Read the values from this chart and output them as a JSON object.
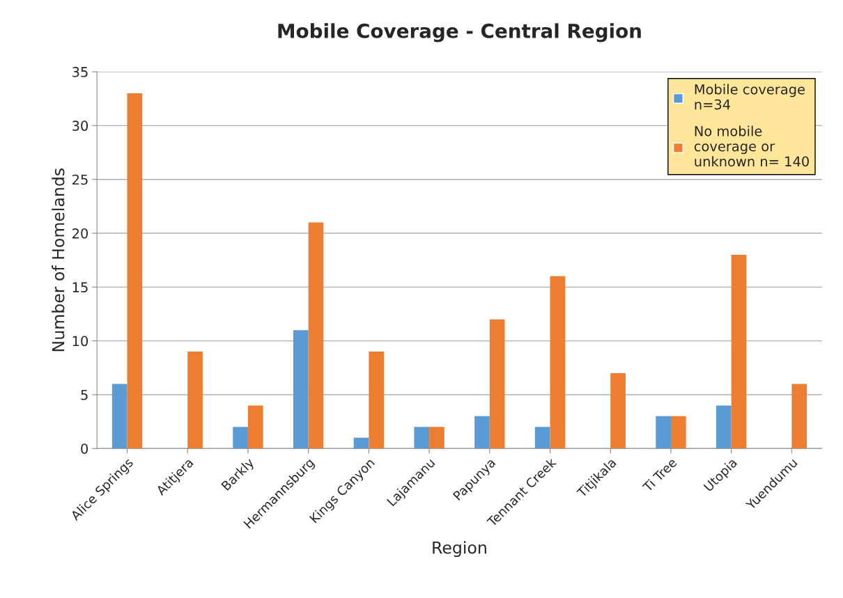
{
  "chart_data": {
    "type": "bar",
    "title": "Mobile Coverage - Central Region",
    "xlabel": "Region",
    "ylabel": "Number of Homelands",
    "categories": [
      "Alice Springs",
      "Atitjera",
      "Barkly",
      "Hermannsburg",
      "Kings Canyon",
      "Lajamanu",
      "Papunya",
      "Tennant Creek",
      "Titjikala",
      "Ti Tree",
      "Utopia",
      "Yuendumu"
    ],
    "series": [
      {
        "name": "Mobile coverage\nn=34",
        "color": "#5b9bd5",
        "values": [
          6,
          0,
          2,
          11,
          1,
          2,
          3,
          2,
          0,
          3,
          4,
          0
        ]
      },
      {
        "name": "No mobile\ncoverage or\nunknown n= 140",
        "color": "#ed7d31",
        "values": [
          33,
          9,
          4,
          21,
          9,
          2,
          12,
          16,
          7,
          3,
          18,
          6
        ]
      }
    ],
    "ylim": [
      0,
      35
    ],
    "yticks": [
      0,
      5,
      10,
      15,
      20,
      25,
      30,
      35
    ],
    "grid": "y",
    "legend": "top right"
  }
}
